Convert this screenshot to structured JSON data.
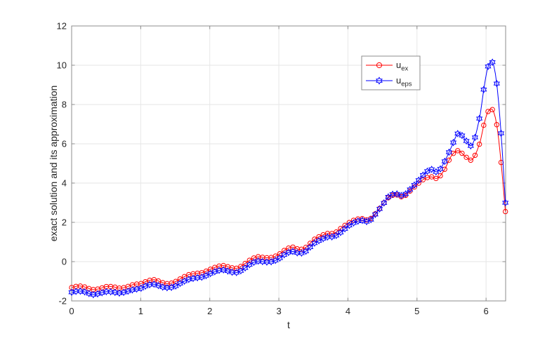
{
  "figure": {
    "background": "#ffffff"
  },
  "chart_data": {
    "type": "line",
    "title": "",
    "xlabel": "t",
    "ylabel": "exact solution and its approximation",
    "xlim": [
      0,
      6.2832
    ],
    "ylim": [
      -2,
      12
    ],
    "xticks": [
      0,
      1,
      2,
      3,
      4,
      5,
      6
    ],
    "yticks": [
      -2,
      0,
      2,
      4,
      6,
      8,
      10,
      12
    ],
    "grid": true,
    "axis_color": "#8c8c8c",
    "grid_color": "#e6e6e6",
    "label_color": "#262626",
    "legend_position": "upper-center-inside",
    "marker_step_t": 0.0628,
    "t": [
      0,
      0.1,
      0.2,
      0.3,
      0.4,
      0.5,
      0.6,
      0.7,
      0.8,
      0.9,
      1,
      1.1,
      1.2,
      1.3,
      1.4,
      1.5,
      1.6,
      1.7,
      1.8,
      1.9,
      2,
      2.1,
      2.2,
      2.3,
      2.4,
      2.5,
      2.6,
      2.7,
      2.8,
      2.9,
      3,
      3.1,
      3.2,
      3.3,
      3.4,
      3.5,
      3.6,
      3.7,
      3.8,
      3.9,
      4,
      4.1,
      4.2,
      4.3,
      4.4,
      4.5,
      4.6,
      4.7,
      4.8,
      4.9,
      5,
      5.1,
      5.2,
      5.3,
      5.4,
      5.5,
      5.6,
      5.7,
      5.8,
      5.91,
      5.97,
      6.03,
      6.1,
      6.16,
      6.22,
      6.28
    ],
    "series": [
      {
        "name": "u_ex",
        "legend_base": "u",
        "legend_sub": "ex",
        "color": "#ff0000",
        "marker": "circle",
        "values": [
          -1.32,
          -1.24,
          -1.3,
          -1.42,
          -1.38,
          -1.27,
          -1.28,
          -1.35,
          -1.28,
          -1.16,
          -1.12,
          -0.98,
          -0.92,
          -1.05,
          -1.12,
          -1.02,
          -0.82,
          -0.66,
          -0.6,
          -0.55,
          -0.4,
          -0.26,
          -0.2,
          -0.3,
          -0.33,
          -0.12,
          0.12,
          0.25,
          0.2,
          0.22,
          0.37,
          0.62,
          0.74,
          0.62,
          0.75,
          1.1,
          1.3,
          1.43,
          1.45,
          1.7,
          1.95,
          2.13,
          2.19,
          2.13,
          2.45,
          2.9,
          3.3,
          3.4,
          3.3,
          3.6,
          3.92,
          4.2,
          4.32,
          4.25,
          4.7,
          5.4,
          5.65,
          5.35,
          5.2,
          6.05,
          7.0,
          7.65,
          7.7,
          6.85,
          4.95,
          2.55
        ]
      },
      {
        "name": "u_eps",
        "legend_base": "u",
        "legend_sub": "eps",
        "color": "#0000ff",
        "marker": "hexagram",
        "values": [
          -1.56,
          -1.5,
          -1.55,
          -1.68,
          -1.62,
          -1.53,
          -1.55,
          -1.6,
          -1.52,
          -1.42,
          -1.36,
          -1.2,
          -1.15,
          -1.28,
          -1.33,
          -1.25,
          -1.05,
          -0.9,
          -0.83,
          -0.78,
          -0.62,
          -0.48,
          -0.42,
          -0.52,
          -0.55,
          -0.35,
          -0.1,
          0.03,
          -0.02,
          0.0,
          0.15,
          0.4,
          0.52,
          0.42,
          0.55,
          0.9,
          1.1,
          1.25,
          1.28,
          1.5,
          1.8,
          2.0,
          2.1,
          2.05,
          2.42,
          2.88,
          3.35,
          3.45,
          3.37,
          3.68,
          4.05,
          4.45,
          4.7,
          4.58,
          5.1,
          5.85,
          6.55,
          6.2,
          5.95,
          7.4,
          8.85,
          9.95,
          10.1,
          8.9,
          6.4,
          3.0
        ]
      }
    ]
  }
}
